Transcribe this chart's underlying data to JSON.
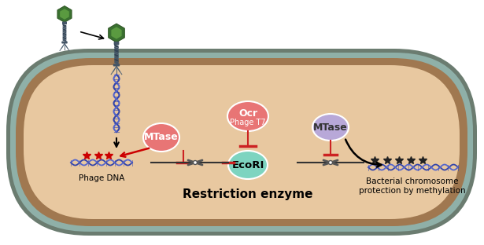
{
  "fig_width": 6.15,
  "fig_height": 3.12,
  "dpi": 100,
  "bg_white": "#ffffff",
  "cell_fill": "#e8c8a0",
  "cell_outer1": "#6b7c6e",
  "cell_outer2": "#8fa8a0",
  "cell_outer3": "#9c8060",
  "mtase_color1": "#e87575",
  "mtase_color2": "#b8a8d8",
  "ocr_color": "#e87575",
  "ecori_color": "#7dd4c0",
  "text_bold": "Restriction enzyme",
  "text_phage_dna": "Phage DNA",
  "text_bact1": "Bacterial chromosome",
  "text_bact2": "protection by methylation",
  "text_mtase": "MTase",
  "text_ocr": "Ocr",
  "text_phage_t7": "Phage T7",
  "text_ecori": "EcoRI",
  "dna_color1": "#3344aa",
  "dna_color2": "#5566cc",
  "star_color_red": "#cc0000",
  "star_color_black": "#222222",
  "inhibit_color": "#cc2222",
  "scissors_color": "#555555"
}
